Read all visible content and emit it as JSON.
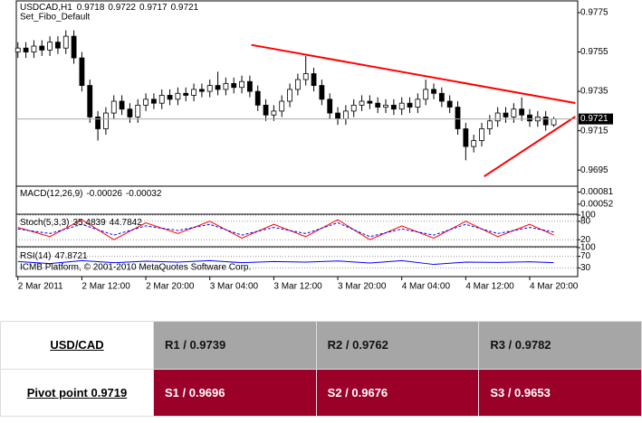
{
  "chart_data": [
    {
      "type": "candlestick",
      "title": "USDCAD,H1",
      "subtitle": "Set_Fibo_Default",
      "x": [
        4,
        5,
        6,
        7,
        8,
        9,
        10,
        11,
        12,
        13,
        14,
        15,
        16,
        17,
        18,
        19,
        20,
        21,
        22,
        23,
        24,
        25,
        26,
        27,
        28,
        29,
        30,
        31,
        32,
        33,
        34,
        35,
        36,
        37,
        38,
        39,
        40,
        41,
        42,
        43,
        44,
        45,
        46,
        47,
        48,
        49,
        50,
        51,
        52,
        53,
        54,
        55,
        56,
        57,
        58,
        59,
        60,
        61,
        62,
        63,
        64,
        65,
        66,
        67,
        68,
        69,
        70,
        71
      ],
      "open": [
        0.9755,
        0.9757,
        0.9755,
        0.9758,
        0.9756,
        0.976,
        0.9757,
        0.9763,
        0.9752,
        0.9738,
        0.9722,
        0.9716,
        0.9724,
        0.973,
        0.9726,
        0.9722,
        0.9728,
        0.9731,
        0.9729,
        0.9733,
        0.9731,
        0.9734,
        0.9733,
        0.9736,
        0.9735,
        0.9738,
        0.9736,
        0.9739,
        0.9737,
        0.974,
        0.9735,
        0.9728,
        0.9723,
        0.9725,
        0.973,
        0.9736,
        0.9741,
        0.9744,
        0.9738,
        0.9731,
        0.9724,
        0.9721,
        0.9725,
        0.9728,
        0.973,
        0.9729,
        0.9727,
        0.9728,
        0.9726,
        0.9729,
        0.9727,
        0.9731,
        0.9736,
        0.9734,
        0.973,
        0.9727,
        0.9716,
        0.9707,
        0.971,
        0.9716,
        0.972,
        0.9724,
        0.9722,
        0.9726,
        0.9723,
        0.972,
        0.9722,
        0.9718
      ],
      "high": [
        0.976,
        0.976,
        0.9761,
        0.9761,
        0.9763,
        0.9763,
        0.9766,
        0.9766,
        0.9755,
        0.9741,
        0.9725,
        0.9727,
        0.9733,
        0.9733,
        0.9729,
        0.9731,
        0.9734,
        0.9734,
        0.9736,
        0.9736,
        0.9737,
        0.9737,
        0.9739,
        0.9739,
        0.9741,
        0.9745,
        0.9742,
        0.9742,
        0.9743,
        0.9743,
        0.9738,
        0.9731,
        0.9728,
        0.9733,
        0.9739,
        0.9744,
        0.9753,
        0.9747,
        0.9741,
        0.9734,
        0.9727,
        0.9728,
        0.9731,
        0.9733,
        0.9733,
        0.9732,
        0.9731,
        0.9731,
        0.9732,
        0.9732,
        0.9734,
        0.9741,
        0.9739,
        0.9737,
        0.9733,
        0.973,
        0.9719,
        0.9713,
        0.9719,
        0.9723,
        0.9727,
        0.9727,
        0.9729,
        0.9732,
        0.9726,
        0.9725,
        0.9725,
        0.9722
      ],
      "low": [
        0.9752,
        0.9752,
        0.9752,
        0.9753,
        0.9753,
        0.9754,
        0.9754,
        0.9749,
        0.9735,
        0.9719,
        0.971,
        0.9713,
        0.9721,
        0.9723,
        0.9719,
        0.9719,
        0.9725,
        0.9726,
        0.9726,
        0.9728,
        0.9728,
        0.973,
        0.973,
        0.9732,
        0.9732,
        0.9733,
        0.9733,
        0.9734,
        0.9734,
        0.9732,
        0.9725,
        0.972,
        0.972,
        0.9722,
        0.9727,
        0.9733,
        0.9738,
        0.9735,
        0.9728,
        0.9721,
        0.9718,
        0.9718,
        0.9722,
        0.9725,
        0.9726,
        0.9724,
        0.9724,
        0.9723,
        0.9723,
        0.9724,
        0.9724,
        0.9728,
        0.9731,
        0.9727,
        0.9724,
        0.9713,
        0.97,
        0.9704,
        0.9707,
        0.9713,
        0.9717,
        0.9719,
        0.9719,
        0.972,
        0.9717,
        0.9717,
        0.9715,
        0.9717
      ],
      "close": [
        0.9757,
        0.9755,
        0.9758,
        0.9756,
        0.976,
        0.9757,
        0.9763,
        0.9752,
        0.9738,
        0.9722,
        0.9716,
        0.9724,
        0.973,
        0.9726,
        0.9722,
        0.9728,
        0.9731,
        0.9729,
        0.9733,
        0.9731,
        0.9734,
        0.9733,
        0.9736,
        0.9735,
        0.9738,
        0.9736,
        0.9739,
        0.9737,
        0.974,
        0.9735,
        0.9728,
        0.9723,
        0.9725,
        0.973,
        0.9736,
        0.9741,
        0.9744,
        0.9738,
        0.9731,
        0.9724,
        0.9721,
        0.9725,
        0.9728,
        0.973,
        0.9729,
        0.9727,
        0.9728,
        0.9726,
        0.9729,
        0.9727,
        0.9731,
        0.9736,
        0.9734,
        0.973,
        0.9727,
        0.9716,
        0.9707,
        0.971,
        0.9716,
        0.972,
        0.9724,
        0.9722,
        0.9726,
        0.9723,
        0.972,
        0.9722,
        0.9718,
        0.9721
      ],
      "up_color": "#ffffff",
      "down_color": "#000000",
      "trendlines": [
        {
          "color": "#ff0000",
          "x": [
            33.2,
            73.7
          ],
          "y": [
            0.97586,
            0.97291
          ]
        },
        {
          "color": "#ff0000",
          "x": [
            62.3,
            73.7
          ],
          "y": [
            0.96918,
            0.97222
          ]
        }
      ],
      "xlim": [
        3.8,
        74
      ],
      "ylim": [
        0.96873,
        0.97805
      ],
      "yticks": [
        0.9775,
        0.9755,
        0.9735,
        0.9715,
        0.9695
      ],
      "xticks": [
        {
          "value": 4,
          "label": "2 Mar 2011"
        },
        {
          "value": 12,
          "label": "2 Mar 12:00"
        },
        {
          "value": 20,
          "label": "2 Mar 20:00"
        },
        {
          "value": 28,
          "label": "3 Mar 04:00"
        },
        {
          "value": 36,
          "label": "3 Mar 12:00"
        },
        {
          "value": 44,
          "label": "3 Mar 20:00"
        },
        {
          "value": 52,
          "label": "4 Mar 04:00"
        },
        {
          "value": 60,
          "label": "4 Mar 12:00"
        },
        {
          "value": 68,
          "label": "4 Mar 20:00"
        }
      ]
    },
    {
      "type": "macd",
      "title": "MACD(12,26,9)",
      "main": -0.00026,
      "signal": -0.00032,
      "ylim": [
        0.0003,
        0.00093
      ],
      "yticks": [
        0.00081,
        0.00052
      ]
    },
    {
      "type": "line",
      "title": "Stoch(5,3,3)",
      "main": 35.4839,
      "signal": 44.7842,
      "ylim": [
        0,
        100
      ],
      "yticks": [
        100,
        80,
        20
      ],
      "x": [
        4,
        8,
        12,
        16,
        20,
        24,
        28,
        32,
        36,
        40,
        44,
        48,
        52,
        56,
        60,
        64,
        68,
        71
      ],
      "series": [
        {
          "color": "#ff0000",
          "values": [
            60,
            30,
            85,
            20,
            75,
            40,
            80,
            25,
            70,
            30,
            85,
            20,
            65,
            25,
            80,
            30,
            70,
            35
          ]
        },
        {
          "color": "#0000ff",
          "dashed": true,
          "values": [
            55,
            40,
            70,
            35,
            65,
            50,
            70,
            35,
            60,
            40,
            75,
            30,
            55,
            35,
            70,
            40,
            60,
            45
          ]
        }
      ]
    },
    {
      "type": "line",
      "title": "RSI(14)",
      "main": 47.8721,
      "annotation": "ICMB Platform, © 2001-2010 MetaQuotes Software Corp.",
      "ylim": [
        0,
        100
      ],
      "yticks": [
        100,
        70,
        30
      ],
      "x": [
        4,
        8,
        12,
        16,
        20,
        24,
        28,
        32,
        36,
        40,
        44,
        48,
        52,
        56,
        60,
        64,
        68,
        71
      ],
      "series": [
        {
          "color": "#0000ff",
          "values": [
            52,
            45,
            55,
            48,
            53,
            50,
            55,
            48,
            52,
            50,
            54,
            47,
            55,
            42,
            50,
            49,
            51,
            48
          ]
        }
      ]
    }
  ],
  "table": {
    "pair": "USD/CAD",
    "pivot": "Pivot point 0.9719",
    "resistance": [
      "R1 / 0.9739",
      "R2 / 0.9762",
      "R3 / 0.9782"
    ],
    "support": [
      "S1 / 0.9696",
      "S2 / 0.9676",
      "S3 / 0.9653"
    ]
  }
}
